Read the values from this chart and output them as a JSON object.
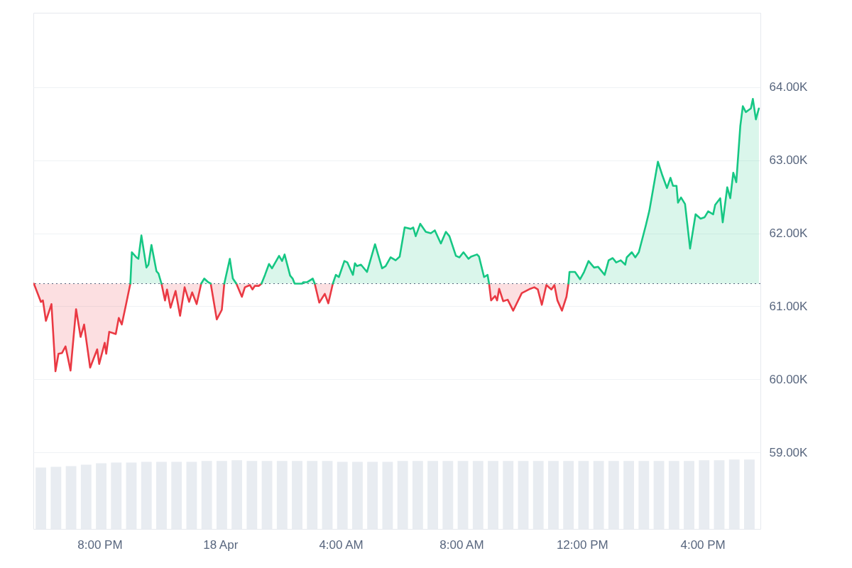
{
  "chart_data": {
    "type": "line",
    "xlim": [
      "--04-17T17:48",
      "--04-18T17:55"
    ],
    "ylim": [
      57.95,
      65.02
    ],
    "xticks": [
      {
        "value": "--04-17T20:00",
        "label": "8:00 PM"
      },
      {
        "value": "--04-18T00:00",
        "label": "18 Apr"
      },
      {
        "value": "--04-18T04:00",
        "label": "4:00 AM"
      },
      {
        "value": "--04-18T08:00",
        "label": "8:00 AM"
      },
      {
        "value": "--04-18T12:00",
        "label": "12:00 PM"
      },
      {
        "value": "--04-18T16:00",
        "label": "4:00 PM"
      }
    ],
    "yticks": [
      {
        "value": 59,
        "label": "59.00K"
      },
      {
        "value": 60,
        "label": "60.00K"
      },
      {
        "value": 61,
        "label": "61.00K"
      },
      {
        "value": 62,
        "label": "62.00K"
      },
      {
        "value": 63,
        "label": "63.00K"
      },
      {
        "value": 64,
        "label": "64.00K"
      }
    ],
    "grid": "y",
    "ref_lines": [
      {
        "axis": "y",
        "value": 61.31,
        "line_style": "dotted",
        "color": "#58667e"
      }
    ],
    "series": [
      {
        "type": "bar",
        "color": "#e8ecf1",
        "x": [
          "--04-17T18:03",
          "--04-17T18:33",
          "--04-17T19:03",
          "--04-17T19:33",
          "--04-17T20:03",
          "--04-17T20:33",
          "--04-17T21:03",
          "--04-17T21:33",
          "--04-17T22:03",
          "--04-17T22:33",
          "--04-17T23:03",
          "--04-17T23:33",
          "--04-18T00:03",
          "--04-18T00:33",
          "--04-18T01:03",
          "--04-18T01:33",
          "--04-18T02:03",
          "--04-18T02:33",
          "--04-18T03:03",
          "--04-18T03:33",
          "--04-18T04:03",
          "--04-18T04:33",
          "--04-18T05:03",
          "--04-18T05:33",
          "--04-18T06:03",
          "--04-18T06:33",
          "--04-18T07:03",
          "--04-18T07:33",
          "--04-18T08:03",
          "--04-18T08:33",
          "--04-18T09:03",
          "--04-18T09:33",
          "--04-18T10:03",
          "--04-18T10:33",
          "--04-18T11:03",
          "--04-18T11:33",
          "--04-18T12:03",
          "--04-18T12:33",
          "--04-18T13:03",
          "--04-18T13:33",
          "--04-18T14:03",
          "--04-18T14:33",
          "--04-18T15:03",
          "--04-18T15:33",
          "--04-18T16:03",
          "--04-18T16:33",
          "--04-18T17:03",
          "--04-18T17:33"
        ],
        "values": [
          58.79,
          58.8,
          58.81,
          58.83,
          58.85,
          58.86,
          58.86,
          58.87,
          58.87,
          58.87,
          58.87,
          58.88,
          58.88,
          58.89,
          58.88,
          58.88,
          58.88,
          58.88,
          58.88,
          58.88,
          58.87,
          58.87,
          58.87,
          58.87,
          58.88,
          58.88,
          58.88,
          58.88,
          58.88,
          58.88,
          58.88,
          58.88,
          58.88,
          58.88,
          58.88,
          58.88,
          58.88,
          58.88,
          58.88,
          58.88,
          58.88,
          58.88,
          58.88,
          58.88,
          58.89,
          58.89,
          58.9,
          58.9
        ]
      },
      {
        "color": "#ea3943",
        "x": [
          "--04-17T17:49",
          "--04-17T18:03",
          "--04-17T18:07",
          "--04-17T18:13",
          "--04-17T18:24",
          "--04-17T18:32",
          "--04-17T18:38",
          "--04-17T18:45",
          "--04-17T18:52",
          "--04-17T19:02",
          "--04-17T19:13",
          "--04-17T19:22",
          "--04-17T19:29",
          "--04-17T19:41",
          "--04-17T19:55",
          "--04-17T19:59",
          "--04-17T20:10",
          "--04-17T20:13",
          "--04-17T20:19",
          "--04-17T20:32",
          "--04-17T20:38",
          "--04-17T20:44",
          "--04-17T20:52",
          "--04-17T21:01",
          "--04-17T21:30",
          "--04-17T22:03",
          "--04-17T22:10",
          "--04-17T22:14",
          "--04-17T22:21",
          "--04-17T22:31",
          "--04-17T22:40",
          "--04-17T22:49",
          "--04-17T22:58",
          "--04-17T23:04",
          "--04-17T23:13",
          "--04-17T23:22",
          "--04-17T23:36",
          "--04-17T23:41",
          "--04-17T23:53",
          "--04-18T00:03",
          "--04-18T00:08",
          "--04-18T00:24",
          "--04-18T00:32",
          "--04-18T00:43",
          "--04-18T00:49",
          "--04-18T00:59",
          "--04-18T01:04",
          "--04-18T01:09",
          "--04-18T01:17",
          "--04-18T01:22",
          "--04-18T02:00",
          "--04-18T03:08",
          "--04-18T03:17",
          "--04-18T03:28",
          "--04-18T03:35",
          "--04-18T03:44",
          "--04-18T06:00",
          "--04-18T08:55",
          "--04-18T08:59",
          "--04-18T09:07",
          "--04-18T09:11",
          "--04-18T09:15",
          "--04-18T09:23",
          "--04-18T09:32",
          "--04-18T09:43",
          "--04-18T10:00",
          "--04-18T10:17",
          "--04-18T10:25",
          "--04-18T10:32",
          "--04-18T10:40",
          "--04-18T10:49",
          "--04-18T10:59",
          "--04-18T11:05",
          "--04-18T11:11",
          "--04-18T11:20",
          "--04-18T11:29",
          "--04-18T11:33"
        ],
        "values": [
          61.31,
          61.06,
          61.08,
          60.8,
          61.03,
          60.11,
          60.35,
          60.36,
          60.45,
          60.12,
          60.96,
          60.58,
          60.75,
          60.16,
          60.41,
          60.21,
          60.5,
          60.35,
          60.65,
          60.62,
          60.84,
          60.75,
          61.01,
          61.31,
          null,
          61.31,
          61.08,
          61.23,
          60.98,
          61.21,
          60.87,
          61.26,
          61.06,
          61.19,
          61.03,
          61.31,
          null,
          61.31,
          60.82,
          60.95,
          61.31,
          null,
          61.31,
          61.13,
          61.26,
          61.29,
          61.23,
          61.28,
          61.28,
          61.31,
          null,
          61.31,
          61.05,
          61.17,
          61.04,
          61.31,
          null,
          61.31,
          61.08,
          61.14,
          61.08,
          61.24,
          61.07,
          61.09,
          60.94,
          61.18,
          61.24,
          61.26,
          61.23,
          61.02,
          61.29,
          61.23,
          61.29,
          61.08,
          60.94,
          61.13,
          61.31
        ],
        "lower": [
          61.31,
          61.06,
          61.08,
          60.8,
          61.03,
          60.11,
          60.35,
          60.36,
          60.45,
          60.12,
          60.96,
          60.58,
          60.75,
          60.16,
          60.41,
          60.21,
          60.5,
          60.35,
          60.65,
          60.62,
          60.84,
          60.75,
          61.01,
          61.31,
          null,
          61.31,
          61.08,
          61.23,
          60.98,
          61.21,
          60.87,
          61.26,
          61.06,
          61.19,
          61.03,
          61.31,
          null,
          61.31,
          60.82,
          60.95,
          61.31,
          null,
          61.31,
          61.13,
          61.26,
          61.29,
          61.23,
          61.28,
          61.28,
          61.31,
          null,
          61.31,
          61.05,
          61.17,
          61.04,
          61.31,
          null,
          61.31,
          61.08,
          61.14,
          61.08,
          61.24,
          61.07,
          61.09,
          60.94,
          61.18,
          61.24,
          61.26,
          61.23,
          61.02,
          61.29,
          61.23,
          61.29,
          61.08,
          60.94,
          61.13,
          61.31
        ],
        "upper": [
          61.31,
          61.31,
          61.31,
          61.31,
          61.31,
          61.31,
          61.31,
          61.31,
          61.31,
          61.31,
          61.31,
          61.31,
          61.31,
          61.31,
          61.31,
          61.31,
          61.31,
          61.31,
          61.31,
          61.31,
          61.31,
          61.31,
          61.31,
          61.31,
          null,
          61.31,
          61.31,
          61.31,
          61.31,
          61.31,
          61.31,
          61.31,
          61.31,
          61.31,
          61.31,
          61.31,
          null,
          61.31,
          61.31,
          61.31,
          61.31,
          null,
          61.31,
          61.31,
          61.31,
          61.31,
          61.31,
          61.31,
          61.31,
          61.31,
          null,
          61.31,
          61.31,
          61.31,
          61.31,
          61.31,
          null,
          61.31,
          61.31,
          61.31,
          61.31,
          61.31,
          61.31,
          61.31,
          61.31,
          61.31,
          61.31,
          61.31,
          61.31,
          61.31,
          61.31,
          61.31,
          61.31,
          61.31,
          61.31,
          61.31,
          61.31
        ]
      },
      {
        "color": "#16c784",
        "x": [
          "--04-17T21:01",
          "--04-17T21:04",
          "--04-17T21:13",
          "--04-17T21:17",
          "--04-17T21:23",
          "--04-17T21:33",
          "--04-17T21:37",
          "--04-17T21:43",
          "--04-17T21:53",
          "--04-17T21:57",
          "--04-17T22:03",
          "--04-17T22:30",
          "--04-17T23:22",
          "--04-17T23:28",
          "--04-17T23:36",
          "--04-17T23:41",
          "--04-17T23:54",
          "--04-18T00:08",
          "--04-18T00:19",
          "--04-18T00:25",
          "--04-18T00:32",
          "--04-18T00:54",
          "--04-18T01:22",
          "--04-18T01:29",
          "--04-18T01:37",
          "--04-18T01:43",
          "--04-18T01:57",
          "--04-18T02:03",
          "--04-18T02:08",
          "--04-18T02:19",
          "--04-18T02:24",
          "--04-18T02:28",
          "--04-18T02:36",
          "--04-18T02:43",
          "--04-18T02:45",
          "--04-18T02:53",
          "--04-18T03:04",
          "--04-18T03:08",
          "--04-18T03:24",
          "--04-18T03:44",
          "--04-18T03:50",
          "--04-18T03:56",
          "--04-18T04:07",
          "--04-18T04:13",
          "--04-18T04:24",
          "--04-18T04:28",
          "--04-18T04:32",
          "--04-18T04:40",
          "--04-18T04:52",
          "--04-18T05:08",
          "--04-18T05:22",
          "--04-18T05:29",
          "--04-18T05:39",
          "--04-18T05:49",
          "--04-18T05:57",
          "--04-18T06:07",
          "--04-18T06:19",
          "--04-18T06:24",
          "--04-18T06:29",
          "--04-18T06:38",
          "--04-18T06:49",
          "--04-18T06:59",
          "--04-18T07:07",
          "--04-18T07:19",
          "--04-18T07:29",
          "--04-18T07:36",
          "--04-18T07:49",
          "--04-18T07:56",
          "--04-18T08:04",
          "--04-18T08:14",
          "--04-18T08:19",
          "--04-18T08:31",
          "--04-18T08:35",
          "--04-18T08:45",
          "--04-18T08:52",
          "--04-18T08:55",
          "--04-18T10:00",
          "--04-18T11:33",
          "--04-18T11:35",
          "--04-18T11:46",
          "--04-18T11:56",
          "--04-18T12:04",
          "--04-18T12:13",
          "--04-18T12:24",
          "--04-18T12:32",
          "--04-18T12:45",
          "--04-18T12:53",
          "--04-18T13:01",
          "--04-18T13:08",
          "--04-18T13:17",
          "--04-18T13:26",
          "--04-18T13:29",
          "--04-18T13:39",
          "--04-18T13:46",
          "--04-18T13:53",
          "--04-18T14:07",
          "--04-18T14:14",
          "--04-18T14:31",
          "--04-18T14:40",
          "--04-18T14:49",
          "--04-18T14:56",
          "--04-18T15:01",
          "--04-18T15:08",
          "--04-18T15:11",
          "--04-18T15:17",
          "--04-18T15:25",
          "--04-18T15:35",
          "--04-18T15:46",
          "--04-18T15:56",
          "--04-18T16:04",
          "--04-18T16:11",
          "--04-18T16:21",
          "--04-18T16:25",
          "--04-18T16:35",
          "--04-18T16:40",
          "--04-18T16:49",
          "--04-18T16:55",
          "--04-18T17:01",
          "--04-18T17:07",
          "--04-18T17:15",
          "--04-18T17:20",
          "--04-18T17:26",
          "--04-18T17:32",
          "--04-18T17:36",
          "--04-18T17:40",
          "--04-18T17:46",
          "--04-18T17:52"
        ],
        "values": [
          61.31,
          61.74,
          61.67,
          61.65,
          61.97,
          61.53,
          61.57,
          61.84,
          61.48,
          61.45,
          61.31,
          null,
          61.31,
          61.38,
          61.33,
          61.31,
          null,
          61.31,
          61.65,
          61.38,
          61.31,
          null,
          61.31,
          61.43,
          61.58,
          61.52,
          61.69,
          61.62,
          61.71,
          61.42,
          61.38,
          61.31,
          61.31,
          61.31,
          61.33,
          61.33,
          61.38,
          61.31,
          null,
          61.31,
          61.43,
          61.4,
          61.62,
          61.6,
          61.43,
          61.59,
          61.55,
          61.57,
          61.47,
          61.85,
          61.52,
          61.55,
          61.67,
          61.63,
          61.68,
          62.08,
          62.06,
          62.08,
          61.96,
          62.13,
          62.02,
          62,
          62.04,
          61.86,
          62.02,
          61.96,
          61.69,
          61.67,
          61.74,
          61.65,
          61.68,
          61.71,
          61.68,
          61.4,
          61.43,
          61.31,
          null,
          61.31,
          61.47,
          61.47,
          61.37,
          61.47,
          61.62,
          61.53,
          61.54,
          61.43,
          61.63,
          61.66,
          61.6,
          61.63,
          61.57,
          61.67,
          61.74,
          61.67,
          61.74,
          62.11,
          62.31,
          62.98,
          62.79,
          62.62,
          62.76,
          62.65,
          62.65,
          62.42,
          62.49,
          62.4,
          61.79,
          62.26,
          62.2,
          62.22,
          62.3,
          62.26,
          62.39,
          62.48,
          62.15,
          62.63,
          62.48,
          62.83,
          62.7,
          63.47,
          63.74,
          63.66,
          63.69,
          63.71,
          63.84,
          63.56,
          63.71
        ],
        "lower": [
          61.31,
          61.31,
          61.31,
          61.31,
          61.31,
          61.31,
          61.31,
          61.31,
          61.31,
          61.31,
          61.31,
          null,
          61.31,
          61.31,
          61.31,
          61.31,
          null,
          61.31,
          61.31,
          61.31,
          61.31,
          null,
          61.31,
          61.31,
          61.31,
          61.31,
          61.31,
          61.31,
          61.31,
          61.31,
          61.31,
          61.31,
          61.31,
          61.31,
          61.31,
          61.31,
          61.31,
          61.31,
          null,
          61.31,
          61.31,
          61.31,
          61.31,
          61.31,
          61.31,
          61.31,
          61.31,
          61.31,
          61.31,
          61.31,
          61.31,
          61.31,
          61.31,
          61.31,
          61.31,
          61.31,
          61.31,
          61.31,
          61.31,
          61.31,
          61.31,
          61.31,
          61.31,
          61.31,
          61.31,
          61.31,
          61.31,
          61.31,
          61.31,
          61.31,
          61.31,
          61.31,
          61.31,
          61.31,
          61.31,
          61.31,
          null,
          61.31,
          61.31,
          61.31,
          61.31,
          61.31,
          61.31,
          61.31,
          61.31,
          61.31,
          61.31,
          61.31,
          61.31,
          61.31,
          61.31,
          61.31,
          61.31,
          61.31,
          61.31,
          61.31,
          61.31,
          61.31,
          61.31,
          61.31,
          61.31,
          61.31,
          61.31,
          61.31,
          61.31,
          61.31,
          61.31,
          61.31,
          61.31,
          61.31,
          61.31,
          61.31,
          61.31,
          61.31,
          61.31,
          61.31,
          61.31,
          61.31,
          61.31,
          61.31,
          61.31,
          61.31,
          61.31,
          61.31,
          61.31,
          61.31,
          61.31
        ],
        "upper": [
          61.31,
          61.74,
          61.67,
          61.65,
          61.97,
          61.53,
          61.57,
          61.84,
          61.48,
          61.45,
          61.31,
          null,
          61.31,
          61.38,
          61.33,
          61.31,
          null,
          61.31,
          61.65,
          61.38,
          61.31,
          null,
          61.31,
          61.43,
          61.58,
          61.52,
          61.69,
          61.62,
          61.71,
          61.42,
          61.38,
          61.31,
          61.31,
          61.31,
          61.33,
          61.33,
          61.38,
          61.31,
          null,
          61.31,
          61.43,
          61.4,
          61.62,
          61.6,
          61.43,
          61.59,
          61.55,
          61.57,
          61.47,
          61.85,
          61.52,
          61.55,
          61.67,
          61.63,
          61.68,
          62.08,
          62.06,
          62.08,
          61.96,
          62.13,
          62.02,
          62,
          62.04,
          61.86,
          62.02,
          61.96,
          61.69,
          61.67,
          61.74,
          61.65,
          61.68,
          61.71,
          61.68,
          61.4,
          61.43,
          61.31,
          null,
          61.31,
          61.47,
          61.47,
          61.37,
          61.47,
          61.62,
          61.53,
          61.54,
          61.43,
          61.63,
          61.66,
          61.6,
          61.63,
          61.57,
          61.67,
          61.74,
          61.67,
          61.74,
          62.11,
          62.31,
          62.98,
          62.79,
          62.62,
          62.76,
          62.65,
          62.65,
          62.42,
          62.49,
          62.4,
          61.79,
          62.26,
          62.2,
          62.22,
          62.3,
          62.26,
          62.39,
          62.48,
          62.15,
          62.63,
          62.48,
          62.83,
          62.7,
          63.47,
          63.74,
          63.66,
          63.69,
          63.71,
          63.84,
          63.56,
          63.71
        ]
      }
    ]
  }
}
